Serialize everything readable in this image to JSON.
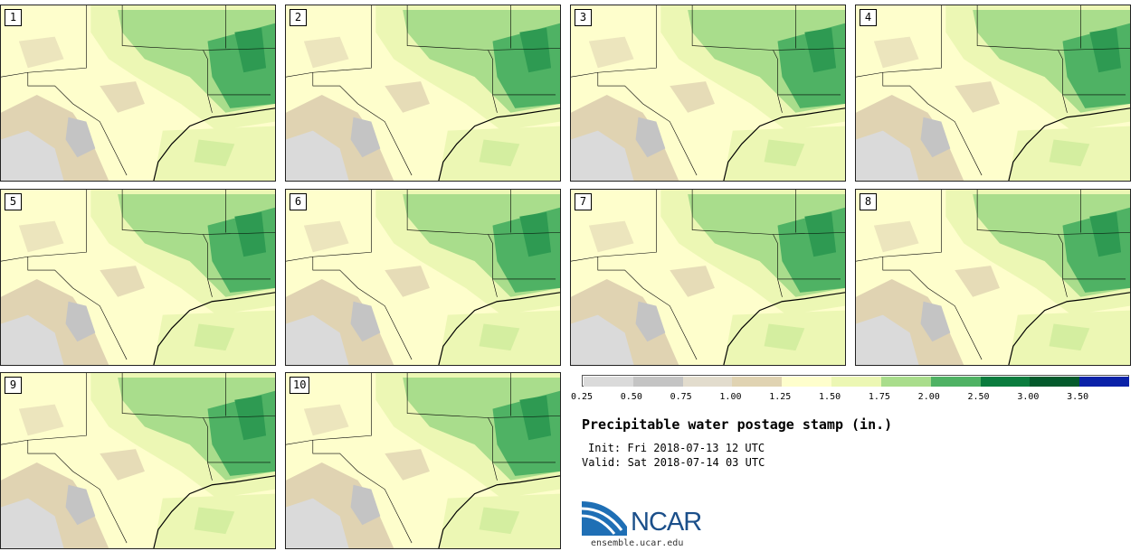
{
  "panels": [
    {
      "label": "1"
    },
    {
      "label": "2"
    },
    {
      "label": "3"
    },
    {
      "label": "4"
    },
    {
      "label": "5"
    },
    {
      "label": "6"
    },
    {
      "label": "7"
    },
    {
      "label": "8"
    },
    {
      "label": "9"
    },
    {
      "label": "10"
    }
  ],
  "legend": {
    "ticks": [
      "0.25",
      "0.50",
      "0.75",
      "1.00",
      "1.25",
      "1.50",
      "1.75",
      "2.00",
      "2.50",
      "3.00",
      "3.50"
    ],
    "colors": [
      "#dadada",
      "#c4c4c4",
      "#e2dccd",
      "#e0d3b2",
      "#fefecc",
      "#ecf7b4",
      "#a9dd8c",
      "#4fb264",
      "#0b7c3e",
      "#045a2c",
      "#0a22a8"
    ]
  },
  "title": "Precipitable water postage stamp (in.)",
  "init": "Init: Fri 2018-07-13 12 UTC",
  "valid": "Valid: Sat 2018-07-14 03 UTC",
  "logo_text": "NCAR",
  "url": "ensemble.ucar.edu"
}
